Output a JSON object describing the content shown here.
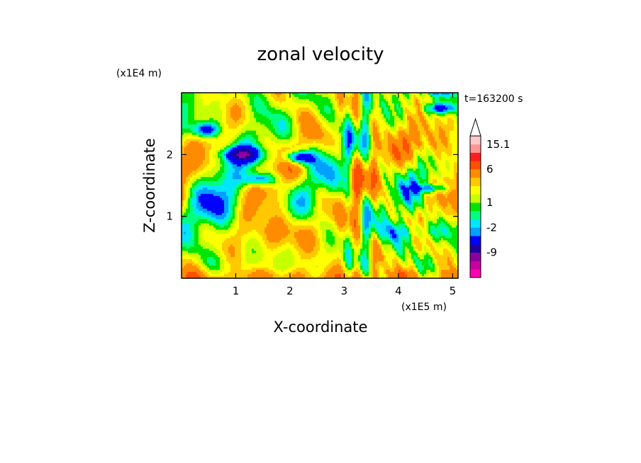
{
  "chart_data": {
    "type": "heatmap",
    "title": "zonal velocity",
    "xlabel": "X-coordinate",
    "ylabel": "Z-coordinate",
    "x_unit": "(x1E5 m)",
    "y_unit": "(x1E4 m)",
    "time_label": "t=163200 s",
    "xlim": [
      0,
      5.1
    ],
    "ylim": [
      0,
      3.0
    ],
    "x_ticks": [
      "1",
      "2",
      "3",
      "4",
      "5"
    ],
    "y_ticks": [
      "1",
      "2"
    ],
    "x_tick_values": [
      1,
      2,
      3,
      4,
      5
    ],
    "y_tick_values": [
      1,
      2
    ],
    "colorbar": {
      "extend_max": true,
      "labels": [
        "15.1",
        "6",
        "1",
        "-2",
        "-9"
      ],
      "levels": [
        -15,
        -12,
        -9,
        -6,
        -3,
        -2,
        -1,
        0,
        1,
        2,
        3,
        4,
        6,
        9,
        12,
        15.1
      ],
      "colors": [
        "#ff00b4",
        "#c800a0",
        "#8c00a0",
        "#1e00a0",
        "#0000ff",
        "#00a0ff",
        "#00e6ff",
        "#00ff80",
        "#00e600",
        "#c8ff00",
        "#ffff00",
        "#ffc800",
        "#ff8c00",
        "#ff5000",
        "#ff1e1e",
        "#ff9696",
        "#ffc8c8"
      ]
    }
  }
}
